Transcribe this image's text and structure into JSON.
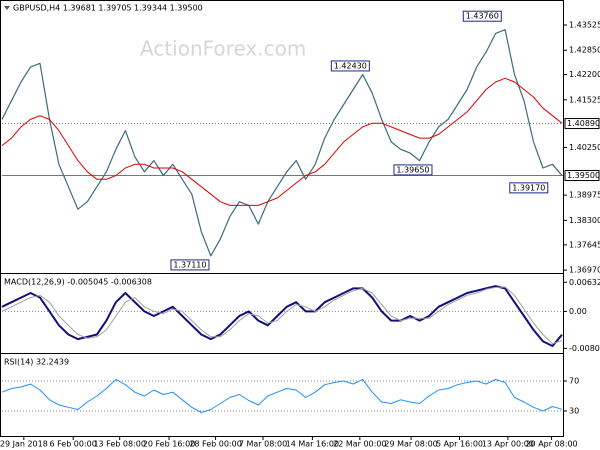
{
  "chart_data": [
    {
      "type": "line",
      "title": "GBPUSD,H4  1.39681 1.39705 1.39344 1.39500",
      "watermark": "ActionForex.com",
      "xlim": [
        0,
        59
      ],
      "ylim": [
        1.3692,
        1.4414
      ],
      "yticks": [
        1.43525,
        {
          "value": 1.4285,
          "label": "1.42850"
        },
        {
          "value": 1.422,
          "label": "1.42200"
        },
        1.41525,
        {
          "value": 1.4025,
          "label": "1.40250"
        },
        1.38975,
        {
          "value": 1.383,
          "label": "1.38300"
        },
        1.37645,
        {
          "value": 1.3697,
          "label": "1.36970"
        }
      ],
      "hlines": [
        {
          "value": 1.4089,
          "label": "1.40890",
          "style": "dotted"
        },
        {
          "value": 1.395,
          "label": "1.39500",
          "style": "solid"
        }
      ],
      "annotations": [
        {
          "x": 19.8,
          "value": 1.3711,
          "label": "1.37110"
        },
        {
          "x": 36.7,
          "value": 1.4243,
          "label": "1.42430"
        },
        {
          "x": 43.3,
          "value": 1.3965,
          "label": "1.39650"
        },
        {
          "x": 50.6,
          "value": 1.4376,
          "label": "1.43760"
        },
        {
          "x": 55.5,
          "value": 1.3917,
          "label": "1.39170"
        }
      ],
      "series": [
        {
          "name": "GBPUSD",
          "color": "#3a6b7e",
          "width": 1.2,
          "values": [
            1.41,
            1.415,
            1.42,
            1.424,
            1.425,
            1.41,
            1.398,
            1.392,
            1.386,
            1.388,
            1.392,
            1.396,
            1.402,
            1.407,
            1.4,
            1.396,
            1.399,
            1.395,
            1.398,
            1.394,
            1.39,
            1.38,
            1.3735,
            1.378,
            1.384,
            1.388,
            1.387,
            1.382,
            1.388,
            1.392,
            1.396,
            1.399,
            1.394,
            1.398,
            1.405,
            1.41,
            1.414,
            1.418,
            1.422,
            1.417,
            1.41,
            1.404,
            1.402,
            1.401,
            1.399,
            1.404,
            1.408,
            1.41,
            1.414,
            1.418,
            1.424,
            1.428,
            1.433,
            1.434,
            1.422,
            1.415,
            1.404,
            1.397,
            1.398,
            1.395
          ]
        },
        {
          "name": "MA",
          "color": "#e00000",
          "width": 1,
          "values": [
            1.403,
            1.405,
            1.408,
            1.41,
            1.411,
            1.41,
            1.407,
            1.403,
            1.399,
            1.396,
            1.394,
            1.394,
            1.395,
            1.397,
            1.398,
            1.398,
            1.397,
            1.397,
            1.397,
            1.396,
            1.394,
            1.392,
            1.39,
            1.388,
            1.387,
            1.387,
            1.387,
            1.387,
            1.388,
            1.389,
            1.391,
            1.393,
            1.395,
            1.396,
            1.398,
            1.401,
            1.404,
            1.406,
            1.408,
            1.409,
            1.409,
            1.408,
            1.407,
            1.406,
            1.405,
            1.405,
            1.406,
            1.408,
            1.41,
            1.412,
            1.415,
            1.418,
            1.42,
            1.421,
            1.42,
            1.418,
            1.416,
            1.413,
            1.411,
            1.409
          ]
        }
      ]
    },
    {
      "type": "line",
      "title": "MACD(12,26,9) -0.005045 -0.006308",
      "xlim": [
        0,
        59
      ],
      "ylim": [
        -0.0088,
        0.0079
      ],
      "yticks": [
        0.006326,
        {
          "value": 0,
          "label": "0.00"
        },
        -0.008022
      ],
      "levels": [
        0
      ],
      "series": [
        {
          "name": "MACD",
          "color": "#10107a",
          "width": 2,
          "values": [
            0.001,
            0.002,
            0.003,
            0.004,
            0.003,
            0.0,
            -0.003,
            -0.005,
            -0.006,
            -0.0055,
            -0.005,
            -0.002,
            0.002,
            0.004,
            0.002,
            0.0,
            -0.001,
            0.0,
            0.001,
            -0.001,
            -0.003,
            -0.005,
            -0.006,
            -0.005,
            -0.003,
            -0.001,
            0.0,
            -0.002,
            -0.003,
            -0.001,
            0.001,
            0.002,
            0.0,
            0.0,
            0.002,
            0.003,
            0.004,
            0.005,
            0.005,
            0.003,
            0.0,
            -0.002,
            -0.002,
            -0.001,
            -0.002,
            -0.001,
            0.001,
            0.002,
            0.003,
            0.004,
            0.0045,
            0.005,
            0.0055,
            0.005,
            0.002,
            -0.001,
            -0.004,
            -0.0065,
            -0.0075,
            -0.005045
          ]
        },
        {
          "name": "Signal",
          "color": "#a0a0a0",
          "width": 1,
          "values": [
            0.0,
            0.001,
            0.002,
            0.003,
            0.0035,
            0.002,
            -0.001,
            -0.003,
            -0.005,
            -0.0058,
            -0.0055,
            -0.004,
            -0.001,
            0.002,
            0.003,
            0.001,
            0.0,
            -0.0005,
            0.0005,
            0.0,
            -0.002,
            -0.004,
            -0.0055,
            -0.0055,
            -0.004,
            -0.002,
            -0.0005,
            -0.001,
            -0.0025,
            -0.002,
            0.0,
            0.0015,
            0.001,
            0.0,
            0.001,
            0.0025,
            0.0035,
            0.0045,
            0.005,
            0.004,
            0.0015,
            -0.001,
            -0.002,
            -0.0015,
            -0.0015,
            -0.0015,
            0.0,
            0.0015,
            0.0025,
            0.0035,
            0.004,
            0.0048,
            0.0052,
            0.0053,
            0.0035,
            0.0005,
            -0.0025,
            -0.005,
            -0.007,
            -0.006308
          ]
        }
      ]
    },
    {
      "type": "line",
      "title": "RSI(14) 32.2439",
      "xlim": [
        0,
        59
      ],
      "ylim": [
        -3.3,
        103.3
      ],
      "yticks": [
        70,
        30
      ],
      "levels": [
        70,
        30
      ],
      "xticks": [
        {
          "value": 2.3,
          "label": "29 Jan 2018"
        },
        {
          "value": 7.5,
          "label": "6 Feb 00:00"
        },
        {
          "value": 12.4,
          "label": "13 Feb 08:00"
        },
        {
          "value": 17.6,
          "label": "20 Feb 16:00"
        },
        {
          "value": 22.5,
          "label": "28 Feb 00:00"
        },
        {
          "value": 27.5,
          "label": "7 Mar 08:00"
        },
        {
          "value": 32.7,
          "label": "14 Mar 16:00"
        },
        {
          "value": 37.7,
          "label": "22 Mar 00:00"
        },
        {
          "value": 43.1,
          "label": "29 Mar 08:00"
        },
        {
          "value": 48.2,
          "label": "5 Apr 16:00"
        },
        {
          "value": 53.3,
          "label": "13 Apr 00:00"
        },
        {
          "value": 57.9,
          "label": "20 Apr 08:00"
        }
      ],
      "series": [
        {
          "name": "RSI",
          "color": "#1e90ff",
          "width": 1,
          "values": [
            55,
            60,
            62,
            66,
            58,
            45,
            38,
            35,
            32,
            42,
            50,
            60,
            72,
            65,
            55,
            50,
            58,
            52,
            55,
            45,
            35,
            28,
            32,
            40,
            48,
            52,
            44,
            38,
            50,
            55,
            60,
            58,
            48,
            55,
            65,
            68,
            70,
            66,
            72,
            55,
            42,
            40,
            45,
            42,
            40,
            50,
            58,
            60,
            65,
            68,
            70,
            66,
            72,
            68,
            48,
            42,
            35,
            30,
            36,
            32.2439
          ]
        }
      ]
    }
  ]
}
